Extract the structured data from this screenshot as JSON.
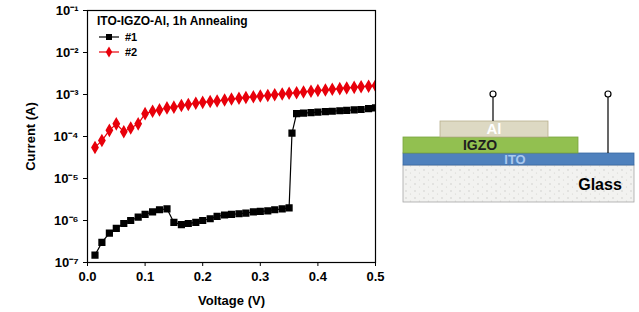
{
  "chart_data": {
    "type": "line",
    "title": "ITO-IGZO-Al, 1h Annealing",
    "x_label": "Voltage (V)",
    "y_label": "Current (A)",
    "log": "y",
    "grid": false,
    "legend": "upper left",
    "xlim": [
      0,
      0.5
    ],
    "xticks": [
      {
        "value": 0,
        "label": "0.0"
      },
      0.1,
      0.2,
      0.3,
      0.4,
      0.5
    ],
    "ylim": [
      1e-07,
      0.1
    ],
    "yticks": [
      {
        "value": 1e-07,
        "label": "10⁻⁷"
      },
      {
        "value": 1e-06,
        "label": "10⁻⁶"
      },
      {
        "value": 1e-05,
        "label": "10⁻⁵"
      },
      {
        "value": 0.0001,
        "label": "10⁻⁴"
      },
      {
        "value": 0.001,
        "label": "10⁻³"
      },
      {
        "value": 0.01,
        "label": "10⁻²"
      },
      {
        "value": 0.1,
        "label": "10⁻¹"
      }
    ],
    "series": [
      {
        "name": "#1",
        "color": "#000000",
        "marker": "square",
        "x": [
          0.013,
          0.025,
          0.038,
          0.05,
          0.063,
          0.075,
          0.088,
          0.1,
          0.113,
          0.125,
          0.138,
          0.15,
          0.163,
          0.175,
          0.188,
          0.2,
          0.213,
          0.225,
          0.238,
          0.25,
          0.263,
          0.275,
          0.288,
          0.3,
          0.313,
          0.325,
          0.338,
          0.35,
          0.355,
          0.363,
          0.375,
          0.388,
          0.4,
          0.413,
          0.425,
          0.438,
          0.45,
          0.463,
          0.475,
          0.488,
          0.5
        ],
        "values": [
          1.5e-07,
          3e-07,
          5e-07,
          6.5e-07,
          8.5e-07,
          1e-06,
          1.2e-06,
          1.4e-06,
          1.6e-06,
          1.8e-06,
          1.9e-06,
          9e-07,
          8e-07,
          8.5e-07,
          9e-07,
          1e-06,
          1.1e-06,
          1.25e-06,
          1.35e-06,
          1.4e-06,
          1.45e-06,
          1.5e-06,
          1.6e-06,
          1.65e-06,
          1.7e-06,
          1.8e-06,
          1.9e-06,
          2e-06,
          0.00012,
          0.00035,
          0.00036,
          0.00037,
          0.00038,
          0.00039,
          0.0004,
          0.00041,
          0.00042,
          0.00043,
          0.00044,
          0.00046,
          0.00048
        ]
      },
      {
        "name": "#2",
        "color": "#e8000b",
        "marker": "diamond",
        "x": [
          0.013,
          0.025,
          0.038,
          0.05,
          0.063,
          0.075,
          0.088,
          0.1,
          0.113,
          0.125,
          0.138,
          0.15,
          0.163,
          0.175,
          0.188,
          0.2,
          0.213,
          0.225,
          0.238,
          0.25,
          0.263,
          0.275,
          0.288,
          0.3,
          0.313,
          0.325,
          0.338,
          0.35,
          0.363,
          0.375,
          0.388,
          0.4,
          0.413,
          0.425,
          0.438,
          0.45,
          0.463,
          0.475,
          0.488,
          0.5
        ],
        "values": [
          5.5e-05,
          8e-05,
          0.00014,
          0.0002,
          0.00013,
          0.00016,
          0.0002,
          0.00035,
          0.0004,
          0.00043,
          0.00048,
          0.0005,
          0.00055,
          0.00058,
          0.00062,
          0.00065,
          0.00068,
          0.0007,
          0.00074,
          0.00078,
          0.00081,
          0.00085,
          0.00088,
          0.00092,
          0.00095,
          0.00099,
          0.00103,
          0.00107,
          0.0011,
          0.00115,
          0.0012,
          0.00124,
          0.00128,
          0.00133,
          0.00138,
          0.00143,
          0.00148,
          0.00153,
          0.00158,
          0.00163
        ]
      }
    ]
  },
  "diagram": {
    "layers": [
      "Al",
      "IGZO",
      "ITO",
      "Glass"
    ]
  }
}
